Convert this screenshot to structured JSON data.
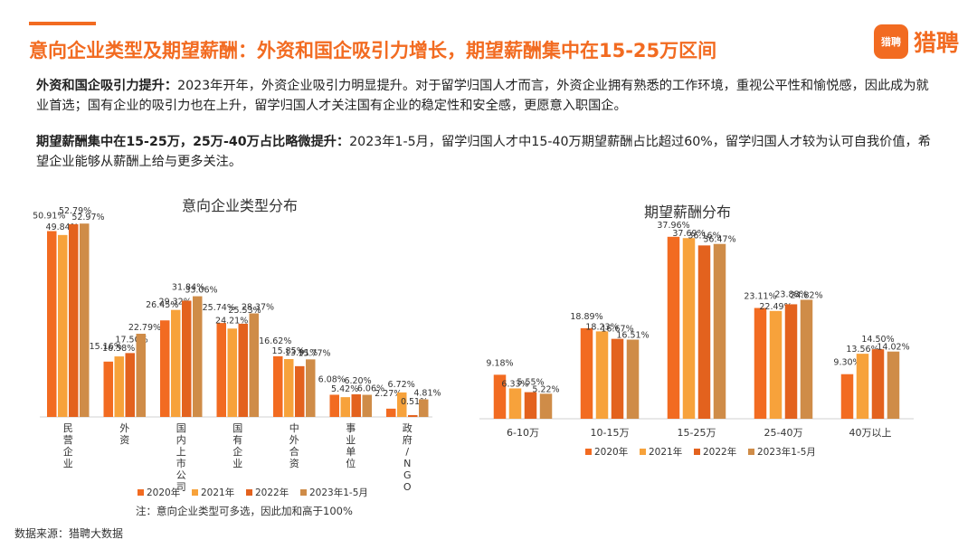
{
  "header": {
    "title": "意向企业类型及期望薪酬：外资和国企吸引力增长，期望薪酬集中在15-25万区间",
    "logo_icon_text": "猎聘",
    "logo_text": "猎聘"
  },
  "paragraphs": [
    {
      "bold": "外资和国企吸引力提升：",
      "text": "2023年开年，外资企业吸引力明显提升。对于留学归国人才而言，外资企业拥有熟悉的工作环境，重视公平性和愉悦感，因此成为就业首选；国有企业的吸引力也在上升，留学归国人才关注国有企业的稳定性和安全感，更愿意入职国企。"
    },
    {
      "bold": "期望薪酬集中在15-25万，25万-40万占比略微提升：",
      "text": "2023年1-5月，留学归国人才中15-40万期望薪酬占比超过60%，留学归国人才较为认可自我价值，希望企业能够从薪酬上给与更多关注。"
    }
  ],
  "chart_data": [
    {
      "type": "bar",
      "title": "意向企业类型分布",
      "categories": [
        "民营企业",
        "外资",
        "国内上市公司",
        "国有企业",
        "中外合资",
        "事业单位",
        "政府/NGO"
      ],
      "series": [
        {
          "name": "2020年",
          "values": [
            50.91,
            15.16,
            26.45,
            25.74,
            16.62,
            6.08,
            2.27
          ]
        },
        {
          "name": "2021年",
          "values": [
            49.84,
            16.58,
            29.32,
            24.21,
            15.85,
            5.42,
            6.72
          ]
        },
        {
          "name": "2022年",
          "values": [
            52.79,
            17.5,
            31.84,
            25.53,
            13.91,
            6.2,
            0.51
          ]
        },
        {
          "name": "2023年1-5月",
          "values": [
            52.97,
            22.79,
            33.06,
            28.37,
            15.77,
            6.06,
            4.81
          ]
        }
      ],
      "ylim": [
        0,
        55
      ],
      "value_suffix": "%",
      "note": "注：意向企业类型可多选，因此加和高于100%"
    },
    {
      "type": "bar",
      "title": "期望薪酬分布",
      "categories": [
        "6-10万",
        "10-15万",
        "15-25万",
        "25-40万",
        "40万以上"
      ],
      "series": [
        {
          "name": "2020年",
          "values": [
            9.18,
            18.89,
            37.96,
            23.11,
            9.3
          ]
        },
        {
          "name": "2021年",
          "values": [
            6.33,
            18.23,
            37.69,
            22.49,
            13.56
          ]
        },
        {
          "name": "2022年",
          "values": [
            5.55,
            16.67,
            36.16,
            23.88,
            14.5
          ]
        },
        {
          "name": "2023年1-5月",
          "values": [
            5.22,
            16.51,
            36.47,
            24.82,
            14.02
          ]
        }
      ],
      "ylim": [
        0,
        40
      ],
      "value_suffix": "%"
    }
  ],
  "colors": {
    "accent": "#f26b21",
    "series": [
      "#f26b21",
      "#f7a23b",
      "#e3621e",
      "#cf8c48"
    ]
  },
  "footer": {
    "source": "数据来源：猎聘大数据"
  }
}
